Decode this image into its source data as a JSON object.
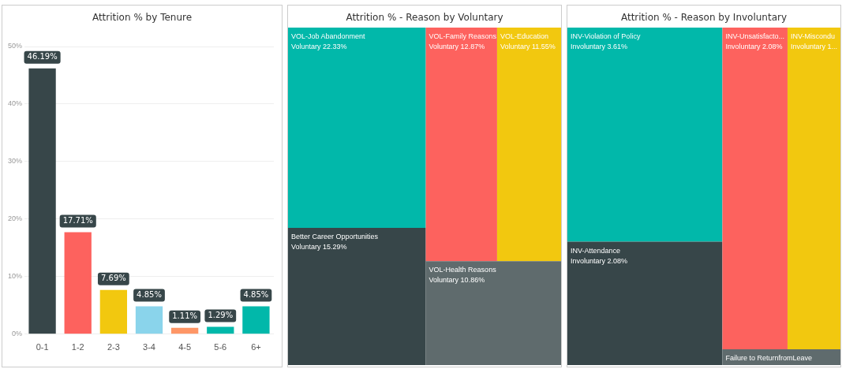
{
  "chart_data": [
    {
      "type": "bar",
      "title": "Attrition % by Tenure",
      "categories": [
        "0-1",
        "1-2",
        "2-3",
        "3-4",
        "4-5",
        "5-6",
        "6+"
      ],
      "values": [
        46.19,
        17.71,
        7.69,
        4.85,
        1.11,
        1.29,
        4.85
      ],
      "colors": [
        "#374649",
        "#fd625e",
        "#f2c80f",
        "#8ad4eb",
        "#fe9666",
        "#01b8aa",
        "#01b8aa"
      ],
      "value_labels": [
        "46.19%",
        "17.71%",
        "7.69%",
        "4.85%",
        "1.11%",
        "1.29%",
        "4.85%"
      ],
      "ylim": [
        0,
        50
      ],
      "yticks": [
        {
          "value": 0,
          "label": "0%"
        },
        {
          "value": 10,
          "label": "10%"
        },
        {
          "value": 20,
          "label": "20%"
        },
        {
          "value": 30,
          "label": "30%"
        },
        {
          "value": 40,
          "label": "40%"
        },
        {
          "value": 50,
          "label": "50%"
        }
      ],
      "grid": "y",
      "legend": false
    },
    {
      "type": "other",
      "title": "Attrition %  - Reason by Voluntary",
      "categories": [
        "VOL-Job Abandonment",
        "Better Career Opportunities",
        "VOL-Family Reasons",
        "VOL-Education",
        "VOL-Health Reasons"
      ],
      "values": [
        22.33,
        15.29,
        12.87,
        11.55,
        10.86
      ],
      "value_labels": [
        "Voluntary 22.33%",
        "Voluntary 15.29%",
        "Voluntary 12.87%",
        "Voluntary 11.55%",
        "Voluntary 10.86%"
      ],
      "colors": [
        "#01b8aa",
        "#374649",
        "#fd625e",
        "#f2c80f",
        "#5f6b6d"
      ]
    },
    {
      "type": "other",
      "title": "Attrition %  - Reason by Involuntary",
      "categories": [
        "INV-Violation of Policy",
        "INV-Attendance",
        "INV-Unsatisfacto...",
        "INV-Miscondu",
        "Failure to ReturnfromLeave"
      ],
      "values": [
        3.61,
        2.08,
        2.08,
        null,
        null
      ],
      "value_labels": [
        "Involuntary 3.61%",
        "Involuntary 2.08%",
        "Involuntary 2.08%",
        "Involuntary 1...",
        null
      ],
      "colors": [
        "#01b8aa",
        "#374649",
        "#fd625e",
        "#f2c80f",
        "#5f6b6d"
      ]
    }
  ]
}
